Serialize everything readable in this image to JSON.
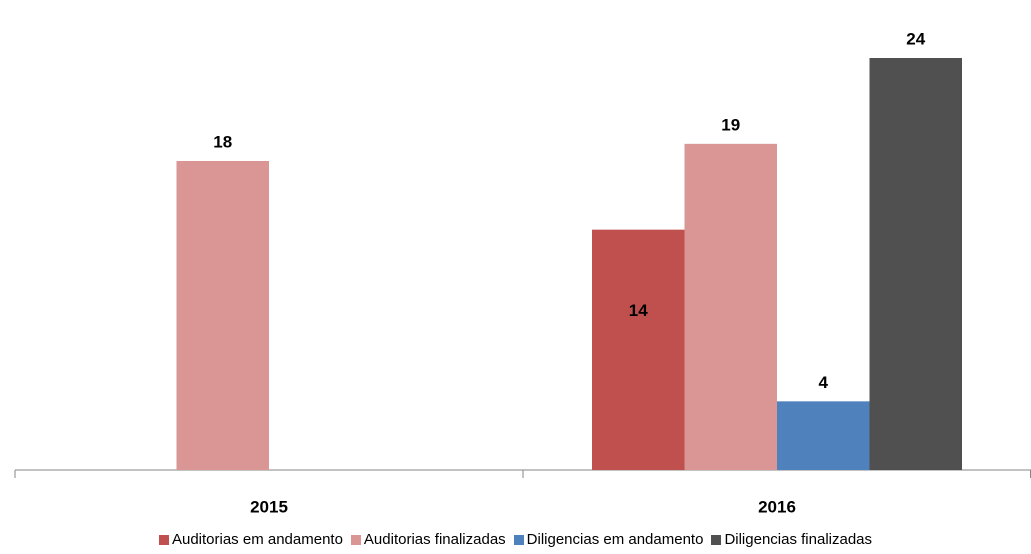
{
  "chart_data": {
    "type": "bar",
    "categories": [
      "2015",
      "2016"
    ],
    "series": [
      {
        "name": "Auditorias em andamento",
        "color": "#c0504d",
        "values": [
          null,
          14
        ]
      },
      {
        "name": "Auditorias finalizadas",
        "color": "#d99694",
        "values": [
          18,
          19
        ]
      },
      {
        "name": "Diligencias em andamento",
        "color": "#4f81bd",
        "values": [
          null,
          4
        ]
      },
      {
        "name": "Diligencias finalizadas",
        "color": "#505050",
        "values": [
          null,
          24
        ]
      }
    ],
    "ylim": [
      0,
      24
    ],
    "legend": "bottom"
  }
}
